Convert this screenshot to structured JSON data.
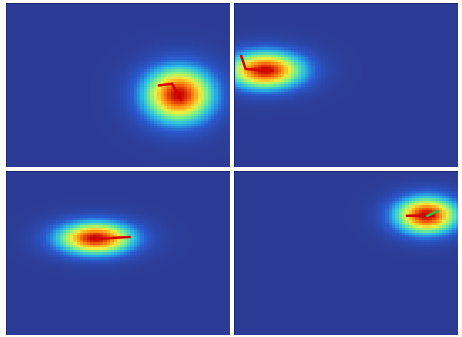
{
  "chart_data": [
    {
      "type": "heatmap",
      "tick_labels": false,
      "xlim": [
        0,
        100
      ],
      "ylim": [
        0,
        100
      ],
      "heat": {
        "center": [
          77,
          56
        ],
        "spread": [
          11,
          12
        ],
        "range": [
          0,
          1
        ]
      },
      "series": [
        {
          "color": "#d40000",
          "x": [
            68,
            74,
            78
          ],
          "y": [
            50,
            49,
            59
          ]
        }
      ]
    },
    {
      "type": "heatmap",
      "tick_labels": false,
      "xlim": [
        0,
        100
      ],
      "ylim": [
        0,
        100
      ],
      "heat": {
        "center": [
          14,
          41
        ],
        "spread": [
          12,
          8
        ],
        "range": [
          0,
          1
        ]
      },
      "series": [
        {
          "color": "#d40000",
          "x": [
            3,
            5,
            17
          ],
          "y": [
            32,
            40,
            41
          ]
        }
      ]
    },
    {
      "type": "heatmap",
      "tick_labels": false,
      "xlim": [
        0,
        100
      ],
      "ylim": [
        0,
        100
      ],
      "heat": {
        "center": [
          40,
          41
        ],
        "spread": [
          12,
          7
        ],
        "range": [
          0,
          1
        ]
      },
      "series": [
        {
          "color": "#d40000",
          "x": [
            40,
            55
          ],
          "y": [
            41,
            40
          ]
        }
      ]
    },
    {
      "type": "heatmap",
      "tick_labels": false,
      "xlim": [
        0,
        100
      ],
      "ylim": [
        0,
        100
      ],
      "heat": {
        "center": [
          86,
          27
        ],
        "spread": [
          10,
          8
        ],
        "range": [
          0,
          1
        ]
      },
      "series": [
        {
          "color": "#d40000",
          "x": [
            77,
            89
          ],
          "y": [
            27,
            27
          ]
        },
        {
          "color": "#30c040",
          "x": [
            86,
            91
          ],
          "y": [
            27,
            24
          ]
        }
      ]
    }
  ]
}
